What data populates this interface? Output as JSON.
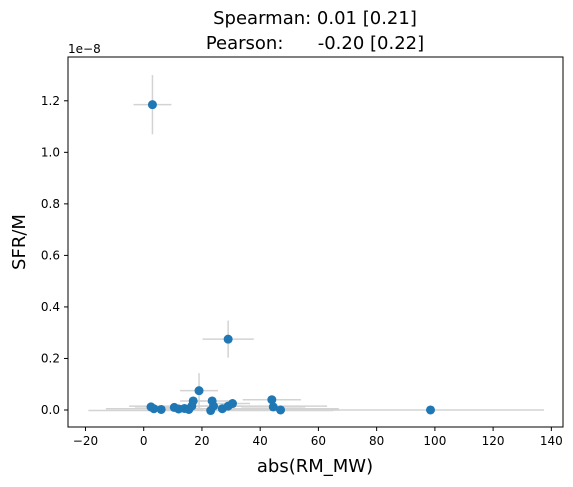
{
  "chart_data": {
    "type": "scatter",
    "title_line1": "Spearman: 0.01 [0.21]",
    "title_line2": "Pearson:      -0.20 [0.22]",
    "xlabel": "abs(RM_MW)",
    "ylabel": "SFR/M",
    "y_offset_label": "1e−8",
    "y_scale": 1e-08,
    "xlim": [
      -26,
      144
    ],
    "ylim": [
      -0.066,
      1.37
    ],
    "x_ticks": [
      -20,
      0,
      20,
      40,
      60,
      80,
      100,
      120,
      140
    ],
    "x_tick_labels": [
      "−20",
      "0",
      "20",
      "40",
      "60",
      "80",
      "100",
      "120",
      "140"
    ],
    "y_ticks": [
      0.0,
      0.2,
      0.4,
      0.6,
      0.8,
      1.0,
      1.2
    ],
    "y_tick_labels": [
      "0.0",
      "0.2",
      "0.4",
      "0.6",
      "0.8",
      "1.0",
      "1.2"
    ],
    "marker_color": "#1f77b4",
    "errorbar_color": "#d3d3d3",
    "points": [
      {
        "x": 3.0,
        "y": 1.185,
        "xerr": 6.5,
        "yerr": 0.115
      },
      {
        "x": 29.0,
        "y": 0.275,
        "xerr": 8.8,
        "yerr": 0.072
      },
      {
        "x": 19.0,
        "y": 0.075,
        "xerr": 6.5,
        "yerr": 0.068
      },
      {
        "x": 2.5,
        "y": 0.012,
        "xerr": 5.5,
        "yerr": 0.006
      },
      {
        "x": 3.5,
        "y": 0.005,
        "xerr": 4.5,
        "yerr": 0.004
      },
      {
        "x": 6.0,
        "y": 0.002,
        "xerr": 4.0,
        "yerr": 0.003
      },
      {
        "x": 10.5,
        "y": 0.01,
        "xerr": 6.0,
        "yerr": 0.005
      },
      {
        "x": 12.0,
        "y": 0.004,
        "xerr": 5.0,
        "yerr": 0.003
      },
      {
        "x": 14.0,
        "y": 0.006,
        "xerr": 6.0,
        "yerr": 0.004
      },
      {
        "x": 15.5,
        "y": 0.002,
        "xerr": 5.0,
        "yerr": 0.003
      },
      {
        "x": 17.0,
        "y": 0.035,
        "xerr": 4.5,
        "yerr": 0.006
      },
      {
        "x": 16.5,
        "y": 0.015,
        "xerr": 5.5,
        "yerr": 0.005
      },
      {
        "x": 23.5,
        "y": 0.035,
        "xerr": 7.0,
        "yerr": 0.006
      },
      {
        "x": 24.0,
        "y": 0.015,
        "xerr": 10.0,
        "yerr": 0.005
      },
      {
        "x": 23.0,
        "y": -0.002,
        "xerr": 42.0,
        "yerr": 0.003
      },
      {
        "x": 27.0,
        "y": 0.005,
        "xerr": 40.0,
        "yerr": 0.003
      },
      {
        "x": 29.0,
        "y": 0.015,
        "xerr": 34.0,
        "yerr": 0.004
      },
      {
        "x": 30.5,
        "y": 0.025,
        "xerr": 6.0,
        "yerr": 0.005
      },
      {
        "x": 44.0,
        "y": 0.04,
        "xerr": 10.0,
        "yerr": 0.006
      },
      {
        "x": 44.5,
        "y": 0.012,
        "xerr": 11.0,
        "yerr": 0.005
      },
      {
        "x": 47.0,
        "y": 0.0,
        "xerr": 20.0,
        "yerr": 0.003
      },
      {
        "x": 98.5,
        "y": 0.0,
        "xerr": 39.0,
        "yerr": 0.003
      }
    ]
  }
}
